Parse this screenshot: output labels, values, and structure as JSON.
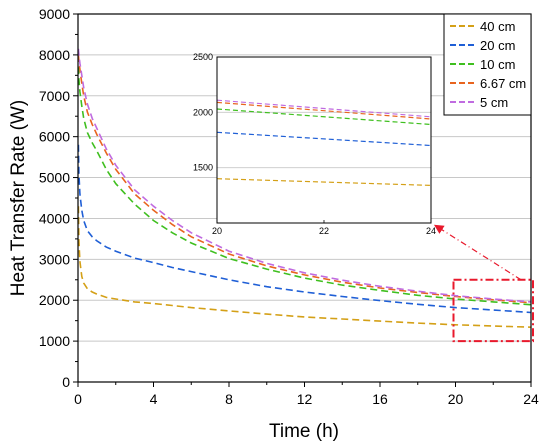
{
  "chart_data": [
    {
      "type": "line",
      "title": "",
      "xlabel": "Time (h)",
      "ylabel": "Heat Transfer Rate (W)",
      "xlim": [
        0,
        24
      ],
      "ylim": [
        0,
        9000
      ],
      "x_ticks": [
        "0",
        "4",
        "8",
        "12",
        "16",
        "20",
        "24"
      ],
      "y_ticks": [
        "0",
        "1000",
        "2000",
        "3000",
        "4000",
        "5000",
        "6000",
        "7000",
        "8000",
        "9000"
      ],
      "grid": "horizontal",
      "legend_position": "top-right",
      "x": [
        0.02,
        0.05,
        0.1,
        0.2,
        0.3,
        0.5,
        0.75,
        1,
        1.5,
        2,
        3,
        4,
        5,
        6,
        8,
        10,
        12,
        14,
        16,
        18,
        20,
        22,
        24
      ],
      "series": [
        {
          "name": "40 cm",
          "color": "#d4a017",
          "values": [
            4300,
            3450,
            2950,
            2580,
            2420,
            2280,
            2200,
            2150,
            2070,
            2030,
            1960,
            1920,
            1870,
            1820,
            1740,
            1660,
            1590,
            1540,
            1490,
            1440,
            1400,
            1370,
            1340
          ]
        },
        {
          "name": "20 cm",
          "color": "#1f5fd6",
          "values": [
            5800,
            5100,
            4600,
            4200,
            3950,
            3700,
            3550,
            3450,
            3300,
            3200,
            3030,
            2920,
            2800,
            2700,
            2500,
            2330,
            2200,
            2090,
            1990,
            1900,
            1820,
            1760,
            1700
          ]
        },
        {
          "name": "10 cm",
          "color": "#3fbf1f",
          "values": [
            7700,
            7400,
            7100,
            6750,
            6450,
            6100,
            5850,
            5650,
            5200,
            4850,
            4350,
            3950,
            3650,
            3400,
            3020,
            2760,
            2540,
            2370,
            2240,
            2120,
            2030,
            1960,
            1890
          ]
        },
        {
          "name": "6.67 cm",
          "color": "#e8641f",
          "values": [
            8000,
            7850,
            7650,
            7300,
            7000,
            6600,
            6300,
            6050,
            5600,
            5200,
            4600,
            4200,
            3850,
            3550,
            3130,
            2840,
            2620,
            2440,
            2300,
            2190,
            2090,
            2010,
            1940
          ]
        },
        {
          "name": "5 cm",
          "color": "#c06be0",
          "values": [
            8150,
            8000,
            7800,
            7500,
            7200,
            6800,
            6450,
            6200,
            5700,
            5300,
            4700,
            4300,
            3950,
            3650,
            3200,
            2900,
            2670,
            2490,
            2340,
            2220,
            2110,
            2030,
            1960
          ]
        }
      ],
      "highlight_box": {
        "x_range": [
          20,
          24
        ],
        "y_range": [
          1000,
          2500
        ],
        "color": "#e8192c"
      }
    },
    {
      "type": "line",
      "title": "",
      "xlabel": "",
      "ylabel": "",
      "xlim": [
        20,
        24
      ],
      "ylim": [
        1000,
        2500
      ],
      "x_ticks": [
        "20",
        "22",
        "24"
      ],
      "y_ticks": [
        "1500",
        "2000",
        "2500"
      ],
      "grid": "horizontal",
      "x": [
        20,
        24
      ],
      "series": [
        {
          "color": "#d4a017",
          "values": [
            1400,
            1340
          ]
        },
        {
          "color": "#1f5fd6",
          "values": [
            1820,
            1700
          ]
        },
        {
          "color": "#3fbf1f",
          "values": [
            2030,
            1890
          ]
        },
        {
          "color": "#e8641f",
          "values": [
            2090,
            1940
          ]
        },
        {
          "color": "#c06be0",
          "values": [
            2110,
            1960
          ]
        }
      ]
    }
  ]
}
